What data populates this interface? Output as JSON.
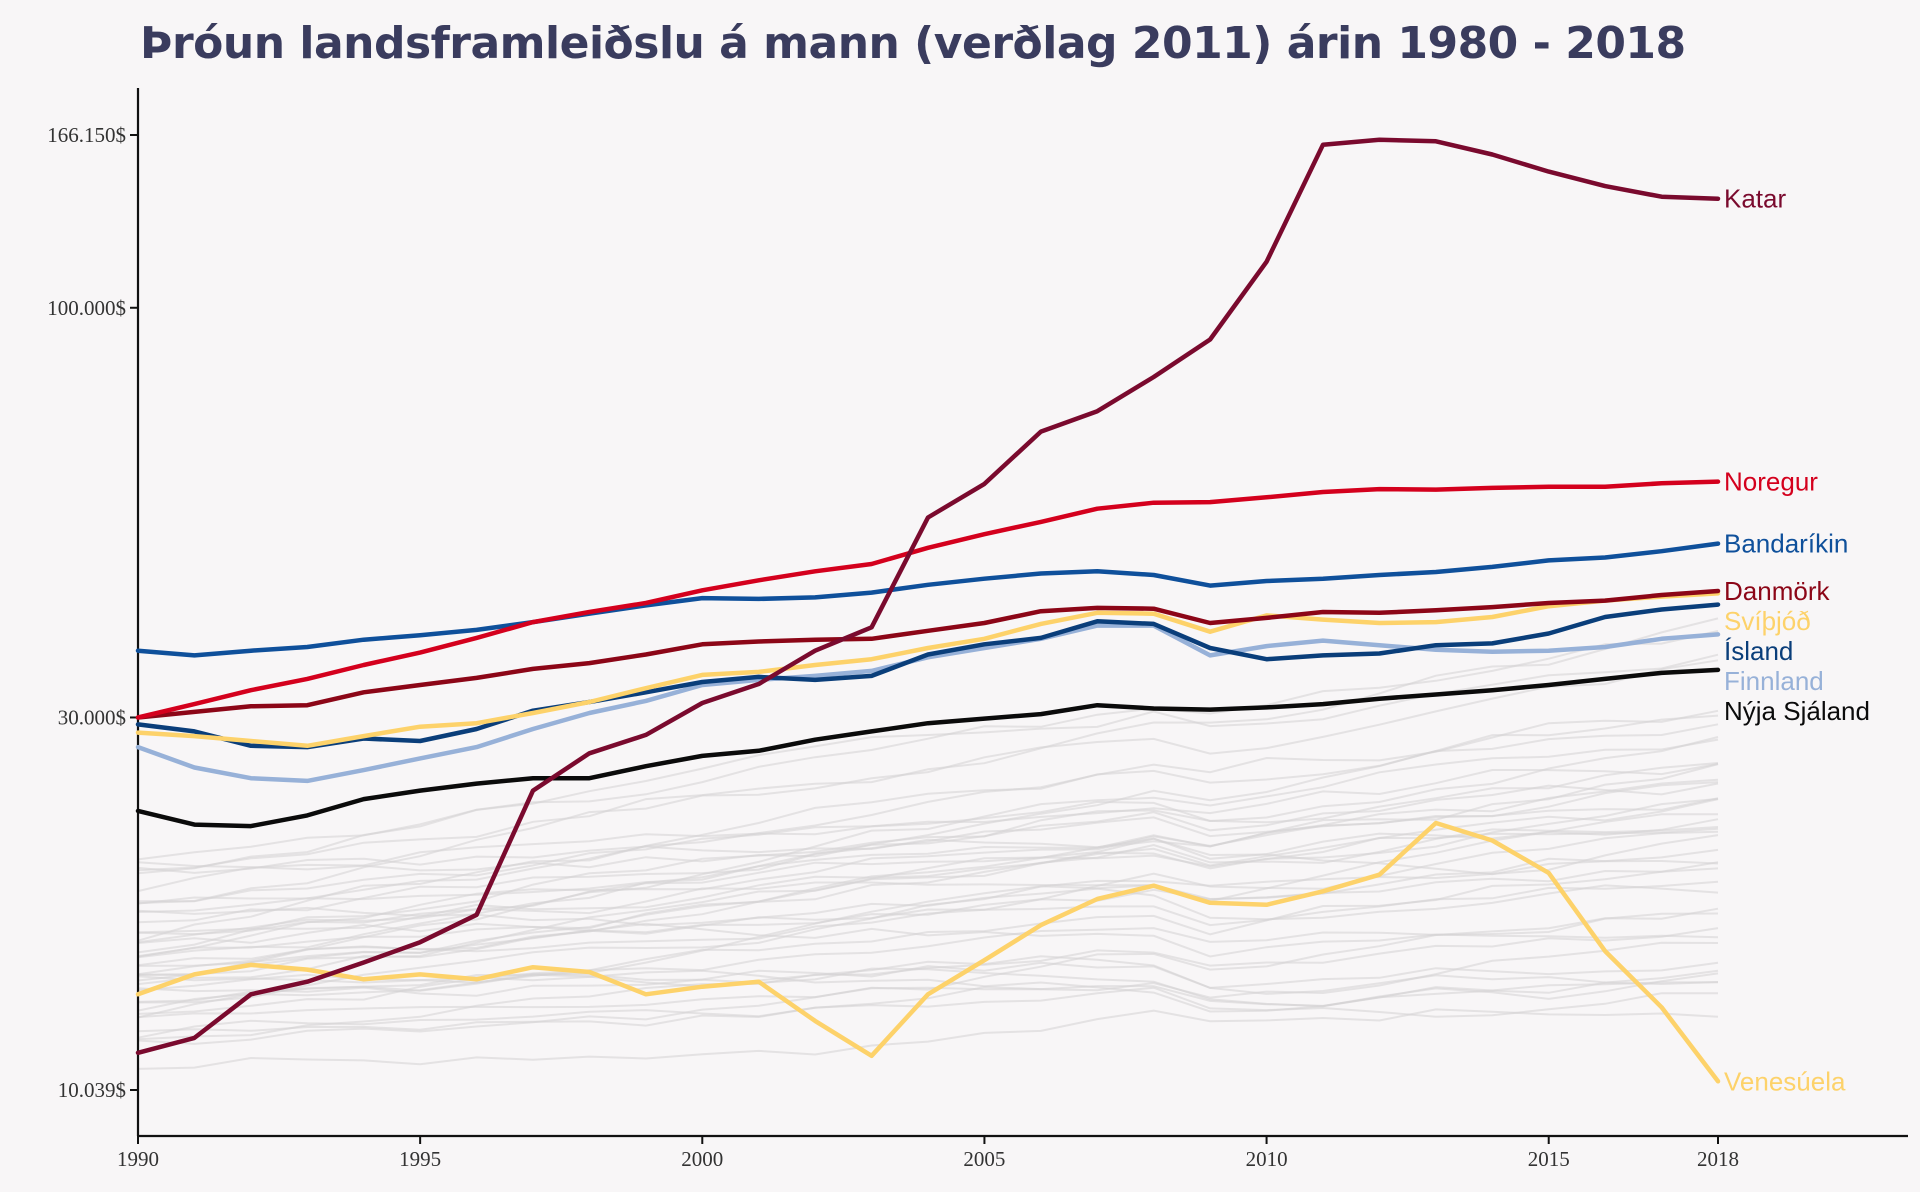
{
  "title": "Þróun landsframleiðslu á mann (verðlag 2011) árin 1980 - 2018",
  "colors": {
    "background": "#f8f6f7",
    "title": "#3a3c5e",
    "background_series": "#d3d1d3"
  },
  "chart_data": {
    "type": "line",
    "title": "Þróun landsframleiðslu á mann (verðlag 2011) árin 1980 - 2018",
    "xlabel": "",
    "ylabel": "",
    "xlim": [
      1990,
      2022
    ],
    "ylim": [
      9300,
      190000
    ],
    "y_scale": "log",
    "grid": false,
    "legend": "direct labels at line ends",
    "x_ticks": [
      "1990",
      "1995",
      "2000",
      "2005",
      "2010",
      "2015",
      "2018"
    ],
    "x_tick_values": [
      1990,
      1995,
      2000,
      2005,
      2010,
      2015,
      2018
    ],
    "y_ticks": [
      "10.039$",
      "30.000$",
      "100.000$",
      "166.150$"
    ],
    "y_tick_values": [
      10039,
      30000,
      100000,
      166150
    ],
    "x": [
      1990,
      1991,
      1992,
      1993,
      1994,
      1995,
      1996,
      1997,
      1998,
      1999,
      2000,
      2001,
      2002,
      2003,
      2004,
      2005,
      2006,
      2007,
      2008,
      2009,
      2010,
      2011,
      2012,
      2013,
      2014,
      2015,
      2016,
      2017,
      2018
    ],
    "series": [
      {
        "name": "Katar",
        "color": "#7a0a2e",
        "values": [
          11200,
          11700,
          13300,
          13800,
          14600,
          15500,
          16800,
          24200,
          27000,
          28500,
          31300,
          33100,
          36500,
          39100,
          54000,
          59600,
          69500,
          73800,
          81600,
          91100,
          114500,
          161500,
          163800,
          163100,
          156900,
          149200,
          143000,
          138600,
          137800
        ]
      },
      {
        "name": "Noregur",
        "color": "#d4001d",
        "values": [
          30000,
          31200,
          32500,
          33600,
          35000,
          36300,
          37900,
          39700,
          40900,
          42000,
          43600,
          44900,
          46100,
          47100,
          49400,
          51400,
          53300,
          55400,
          56400,
          56500,
          57300,
          58200,
          58700,
          58600,
          58900,
          59100,
          59100,
          59700,
          60000
        ]
      },
      {
        "name": "Bandaríkin",
        "color": "#0f509b",
        "values": [
          36500,
          36000,
          36500,
          36900,
          37700,
          38200,
          38800,
          39700,
          40700,
          41700,
          42600,
          42500,
          42700,
          43300,
          44300,
          45100,
          45800,
          46100,
          45600,
          44200,
          44800,
          45100,
          45600,
          46000,
          46700,
          47600,
          48000,
          48900,
          50000
        ]
      },
      {
        "name": "Danmörk",
        "color": "#8c0617",
        "values": [
          30000,
          30500,
          31000,
          31100,
          32300,
          33000,
          33700,
          34600,
          35200,
          36100,
          37200,
          37500,
          37700,
          37800,
          38700,
          39600,
          41000,
          41400,
          41300,
          39600,
          40200,
          40900,
          40800,
          41100,
          41500,
          42000,
          42300,
          43000,
          43500
        ]
      },
      {
        "name": "Svíþjóð",
        "color": "#fdd26a",
        "values": [
          28700,
          28400,
          28000,
          27600,
          28400,
          29200,
          29500,
          30400,
          31400,
          32700,
          34000,
          34300,
          35000,
          35600,
          36800,
          37800,
          39500,
          40800,
          40700,
          38600,
          40500,
          40000,
          39600,
          39700,
          40300,
          41600,
          42300,
          42800,
          43200
        ]
      },
      {
        "name": "Ísland",
        "color": "#0a3e7a",
        "values": [
          29400,
          28800,
          27600,
          27500,
          28200,
          28000,
          29000,
          30600,
          31400,
          32300,
          33300,
          33800,
          33500,
          33900,
          36100,
          37200,
          37900,
          39800,
          39500,
          36800,
          35600,
          36000,
          36200,
          37100,
          37300,
          38400,
          40300,
          41200,
          41800
        ]
      },
      {
        "name": "Finnland",
        "color": "#97b1d8",
        "values": [
          27500,
          25900,
          25100,
          24900,
          25700,
          26600,
          27500,
          29000,
          30400,
          31500,
          33000,
          33500,
          33900,
          34400,
          35800,
          36800,
          37800,
          39300,
          39300,
          36000,
          37000,
          37600,
          37100,
          36600,
          36400,
          36500,
          36900,
          37800,
          38300
        ]
      },
      {
        "name": "Nýja Sjáland",
        "color": "#0b0b0b",
        "values": [
          22800,
          21900,
          21800,
          22500,
          23600,
          24200,
          24700,
          25100,
          25100,
          26000,
          26800,
          27200,
          28100,
          28800,
          29500,
          29900,
          30300,
          31100,
          30800,
          30700,
          30900,
          31200,
          31700,
          32100,
          32500,
          33000,
          33600,
          34200,
          34500
        ]
      },
      {
        "name": "Venesúela",
        "color": "#fdd26a",
        "values": [
          13300,
          14100,
          14500,
          14300,
          13900,
          14100,
          13900,
          14400,
          14200,
          13300,
          13600,
          13800,
          12300,
          11100,
          13300,
          14700,
          16300,
          17600,
          18300,
          17400,
          17300,
          18000,
          18900,
          22000,
          20900,
          19000,
          15100,
          12800,
          10300
        ]
      }
    ]
  }
}
